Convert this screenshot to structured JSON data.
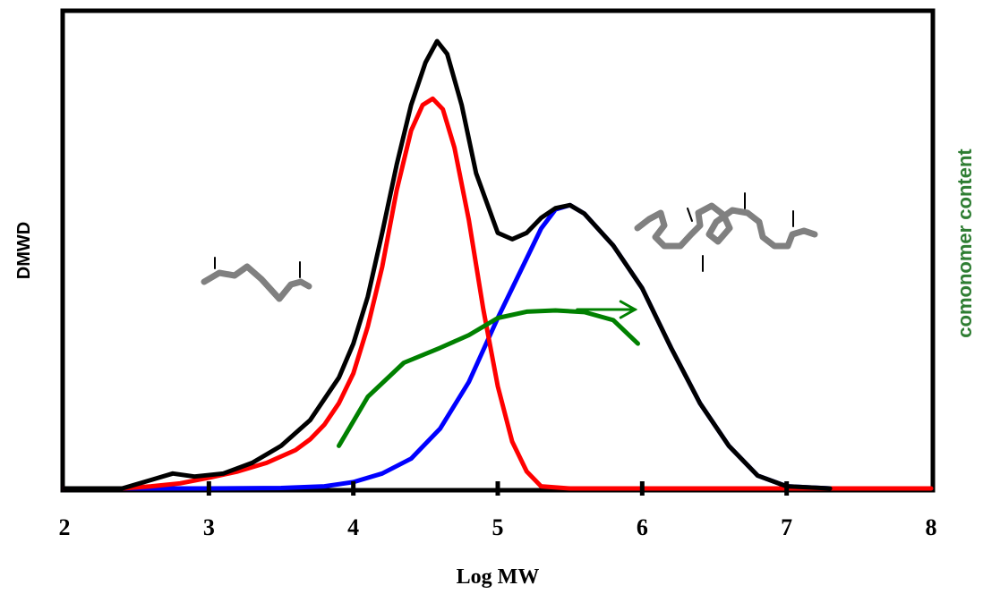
{
  "chart_data": {
    "type": "line",
    "xlabel": "Log MW",
    "ylabel": "DMWD",
    "y2label": "comonomer content",
    "xlim": [
      2,
      8
    ],
    "xticks": [
      2,
      3,
      4,
      5,
      6,
      7,
      8
    ],
    "ylim": [
      0,
      1.05
    ],
    "y2lim": [
      0,
      1.05
    ],
    "grid": false,
    "colors": {
      "low_mw_component": "#ff0000",
      "high_mw_component": "#0000ff",
      "total": "#000000",
      "comonomer": "#008000",
      "y2label": "#2e7d32",
      "chain": "#808080"
    },
    "series": [
      {
        "key": "low_mw_component",
        "color": "#ff0000",
        "x": [
          2.0,
          2.4,
          2.6,
          2.8,
          3.0,
          3.2,
          3.4,
          3.6,
          3.7,
          3.8,
          3.9,
          4.0,
          4.1,
          4.2,
          4.3,
          4.4,
          4.48,
          4.55,
          4.62,
          4.7,
          4.8,
          4.9,
          5.0,
          5.1,
          5.2,
          5.3,
          5.5,
          6.0,
          7.0,
          8.0
        ],
        "y": [
          0.0,
          0.0,
          0.005,
          0.012,
          0.025,
          0.04,
          0.06,
          0.09,
          0.115,
          0.15,
          0.2,
          0.27,
          0.38,
          0.52,
          0.7,
          0.84,
          0.9,
          0.915,
          0.89,
          0.8,
          0.63,
          0.42,
          0.24,
          0.11,
          0.04,
          0.005,
          0.0,
          0.0,
          0.0,
          0.0
        ]
      },
      {
        "key": "high_mw_component",
        "color": "#0000ff",
        "x": [
          2.0,
          3.0,
          3.5,
          3.8,
          4.0,
          4.2,
          4.4,
          4.6,
          4.8,
          5.0,
          5.2,
          5.3,
          5.4,
          5.5,
          5.6,
          5.8,
          6.0,
          6.2,
          6.4,
          6.6,
          6.8,
          7.0,
          7.3
        ],
        "y": [
          0.0,
          0.0,
          0.001,
          0.005,
          0.015,
          0.035,
          0.07,
          0.14,
          0.25,
          0.4,
          0.54,
          0.61,
          0.655,
          0.665,
          0.645,
          0.57,
          0.47,
          0.33,
          0.2,
          0.1,
          0.03,
          0.005,
          0.0
        ]
      },
      {
        "key": "total",
        "color": "#000000",
        "x": [
          2.0,
          2.4,
          2.6,
          2.75,
          2.9,
          3.1,
          3.3,
          3.5,
          3.7,
          3.9,
          4.0,
          4.1,
          4.2,
          4.3,
          4.4,
          4.5,
          4.58,
          4.65,
          4.75,
          4.85,
          5.0,
          5.1,
          5.2,
          5.3,
          5.4,
          5.5,
          5.6,
          5.8,
          6.0,
          6.2,
          6.4,
          6.6,
          6.8,
          7.0,
          7.3
        ],
        "y": [
          0.0,
          0.0,
          0.02,
          0.035,
          0.028,
          0.035,
          0.06,
          0.1,
          0.16,
          0.26,
          0.34,
          0.45,
          0.6,
          0.76,
          0.9,
          1.0,
          1.05,
          1.02,
          0.9,
          0.74,
          0.6,
          0.585,
          0.6,
          0.635,
          0.658,
          0.665,
          0.645,
          0.57,
          0.47,
          0.33,
          0.2,
          0.1,
          0.03,
          0.005,
          0.0
        ]
      },
      {
        "key": "comonomer",
        "color": "#008000",
        "axis": "y2",
        "x": [
          3.9,
          4.1,
          4.35,
          4.6,
          4.8,
          5.0,
          5.2,
          5.4,
          5.6,
          5.8,
          5.97
        ],
        "y": [
          0.1,
          0.215,
          0.295,
          0.33,
          0.36,
          0.4,
          0.415,
          0.418,
          0.414,
          0.395,
          0.34
        ]
      }
    ],
    "annotations": [
      {
        "type": "arrow",
        "color": "#008000",
        "from": [
          5.55,
          0.42
        ],
        "to": [
          5.95,
          0.42
        ]
      },
      {
        "type": "chain-icon",
        "size": "short",
        "near": [
          3.2,
          0.56
        ]
      },
      {
        "type": "chain-icon",
        "size": "long",
        "near": [
          6.65,
          0.69
        ]
      }
    ]
  }
}
